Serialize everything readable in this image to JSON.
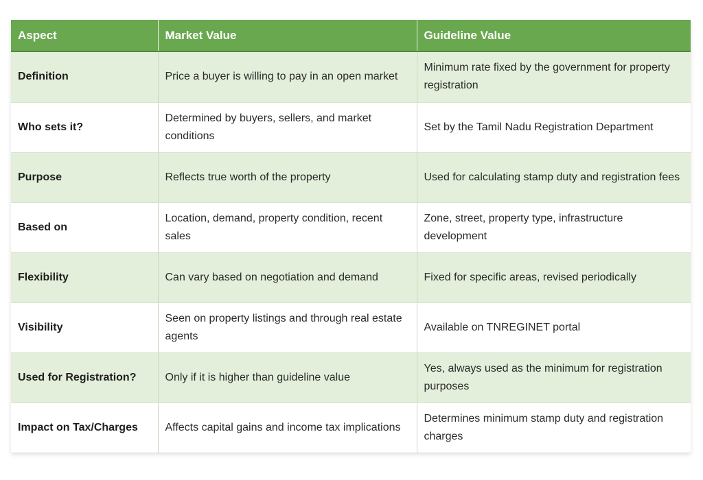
{
  "header": {
    "aspect": "Aspect",
    "market": "Market Value",
    "guideline": "Guideline Value"
  },
  "colors": {
    "header_green": "#6aa84f",
    "row_shade": "#e3efda",
    "row_plain": "#ffffff"
  },
  "rows": [
    {
      "aspect": "Definition",
      "market": "Price a buyer is willing to pay in an open market",
      "guideline": "Minimum rate fixed by the government for property registration"
    },
    {
      "aspect": "Who sets it?",
      "market": "Determined by buyers, sellers, and market conditions",
      "guideline": "Set by the Tamil Nadu Registration Department"
    },
    {
      "aspect": "Purpose",
      "market": "Reflects true worth of the property",
      "guideline": "Used for calculating stamp duty and registration fees"
    },
    {
      "aspect": "Based on",
      "market": "Location, demand, property condition, recent sales",
      "guideline": "Zone, street, property type, infrastructure development"
    },
    {
      "aspect": "Flexibility",
      "market": "Can vary based on negotiation and demand",
      "guideline": "Fixed for specific areas, revised periodically"
    },
    {
      "aspect": "Visibility",
      "market": "Seen on property listings and through real estate agents",
      "guideline": "Available on TNREGINET portal"
    },
    {
      "aspect": "Used for Registration?",
      "market": "Only if it is higher than guideline value",
      "guideline": "Yes, always used as the minimum for registration purposes"
    },
    {
      "aspect": "Impact on Tax/Charges",
      "market": "Affects capital gains and income tax implications",
      "guideline": "Determines minimum stamp duty and registration charges"
    }
  ]
}
